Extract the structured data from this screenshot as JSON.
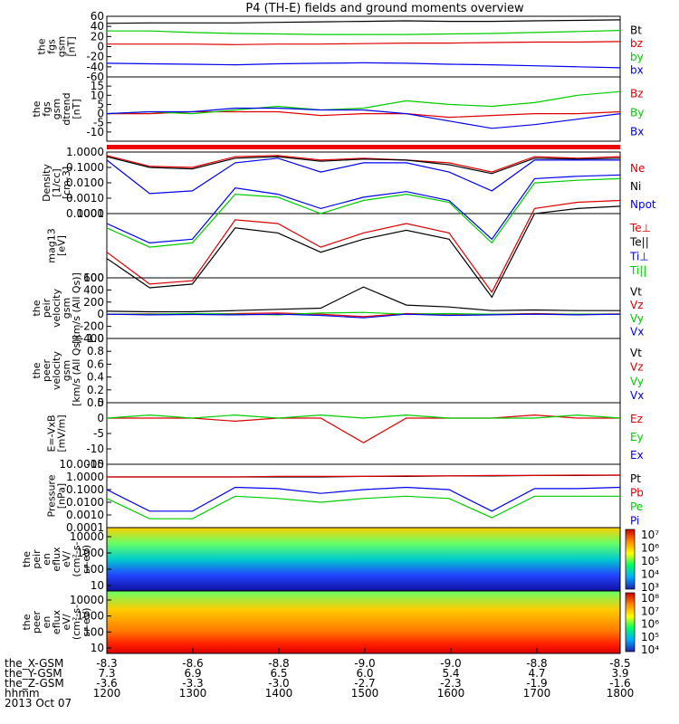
{
  "title": "P4 (TH-E) fields and ground moments overview",
  "chart_data": [
    {
      "type": "line",
      "ylabel": [
        "the",
        "fgs",
        "gsm",
        "[nT]"
      ],
      "ylim": [
        -60,
        60
      ],
      "yticks": [
        "60",
        "40",
        "20",
        "0",
        "-20",
        "-40",
        "-60"
      ],
      "yticks_val": [
        60,
        40,
        20,
        0,
        -20,
        -40,
        -60
      ],
      "series": [
        {
          "name": "Bt",
          "color": "#000000",
          "values": [
            46,
            47,
            47,
            47,
            48,
            49,
            50,
            51,
            50,
            50,
            51,
            52,
            53
          ]
        },
        {
          "name": "bz",
          "color": "#dd0000",
          "values": [
            5,
            5,
            5,
            4,
            5,
            5,
            6,
            7,
            7,
            8,
            9,
            9,
            10
          ]
        },
        {
          "name": "by",
          "color": "#00cc00",
          "values": [
            31,
            31,
            28,
            26,
            25,
            24,
            24,
            24,
            25,
            26,
            28,
            30,
            32
          ]
        },
        {
          "name": "bx",
          "color": "#0000ee",
          "values": [
            -33,
            -34,
            -35,
            -36,
            -34,
            -33,
            -32,
            -33,
            -35,
            -36,
            -38,
            -40,
            -42
          ]
        }
      ]
    },
    {
      "type": "line",
      "ylabel": [
        "the",
        "fgs",
        "gsm",
        "dtrend",
        "[nT]"
      ],
      "ylim": [
        -15,
        20
      ],
      "yticks": [
        "15",
        "10",
        "5",
        "0",
        "-5",
        "-10"
      ],
      "yticks_val": [
        15,
        10,
        5,
        0,
        -5,
        -10
      ],
      "series": [
        {
          "name": "Bz",
          "color": "#dd0000",
          "values": [
            0,
            0,
            1,
            1,
            1,
            -1,
            0,
            0,
            -2,
            -1,
            0,
            0,
            1
          ]
        },
        {
          "name": "By",
          "color": "#00cc00",
          "values": [
            0,
            1,
            0,
            2,
            4,
            2,
            3,
            7,
            5,
            4,
            6,
            10,
            12
          ]
        },
        {
          "name": "Bx",
          "color": "#0000ee",
          "values": [
            0,
            1,
            1,
            3,
            3,
            2,
            2,
            0,
            -4,
            -8,
            -6,
            -3,
            0
          ]
        }
      ]
    },
    {
      "type": "line",
      "scale": "log",
      "ylabel": [
        "Density",
        "[1/cc]",
        "[cm-3]"
      ],
      "yticks": [
        "1.0000",
        "0.1000",
        "0.0100",
        "0.0010",
        "0.0001"
      ],
      "yticks_val": [
        1,
        0.1,
        0.01,
        0.001,
        0.0001
      ],
      "series": [
        {
          "name": "Ne",
          "color": "#dd0000",
          "values": [
            0.6,
            0.12,
            0.1,
            0.5,
            0.6,
            0.3,
            0.4,
            0.3,
            0.2,
            0.05,
            0.5,
            0.4,
            0.5
          ]
        },
        {
          "name": "Ni",
          "color": "#000000",
          "values": [
            0.5,
            0.1,
            0.08,
            0.4,
            0.5,
            0.25,
            0.35,
            0.3,
            0.15,
            0.04,
            0.4,
            0.35,
            0.4
          ]
        },
        {
          "name": "Npot",
          "color": "#0000ee",
          "values": [
            0.3,
            0.002,
            0.003,
            0.2,
            0.4,
            0.05,
            0.2,
            0.2,
            0.05,
            0.003,
            0.3,
            0.3,
            0.3
          ]
        }
      ]
    },
    {
      "type": "line",
      "scale": "log",
      "ylabel": [
        "mag13",
        "[eV]"
      ],
      "yticks": [
        "1000",
        "100"
      ],
      "yticks_val": [
        1000,
        100
      ],
      "series": [
        {
          "name": "Te⊥",
          "color": "#dd0000",
          "values": [
            250,
            80,
            90,
            800,
            700,
            300,
            500,
            700,
            500,
            60,
            1200,
            1500,
            1600
          ]
        },
        {
          "name": "Te||",
          "color": "#000000",
          "values": [
            200,
            70,
            80,
            600,
            500,
            250,
            400,
            550,
            400,
            50,
            1000,
            1200,
            1300
          ]
        },
        {
          "name": "Ti⊥",
          "color": "#0000ee",
          "values": [
            700,
            350,
            400,
            2500,
            2000,
            1200,
            1800,
            2200,
            1600,
            400,
            3500,
            3800,
            4000
          ]
        },
        {
          "name": "Ti||",
          "color": "#00cc00",
          "values": [
            600,
            300,
            350,
            2000,
            1800,
            1000,
            1600,
            2000,
            1500,
            350,
            3000,
            3300,
            3500
          ]
        }
      ]
    },
    {
      "type": "line",
      "ylabel": [
        "the",
        "peir",
        "velocity",
        "gsm",
        "[km/s (All Qs)]"
      ],
      "ylim": [
        -400,
        600
      ],
      "yticks": [
        "600",
        "400",
        "200",
        "0",
        "-200",
        "-400"
      ],
      "yticks_val": [
        600,
        400,
        200,
        0,
        -200,
        -400
      ],
      "series": [
        {
          "name": "Vt",
          "color": "#000000",
          "values": [
            50,
            40,
            40,
            60,
            80,
            100,
            450,
            150,
            120,
            60,
            70,
            60,
            60
          ]
        },
        {
          "name": "Vz",
          "color": "#dd0000",
          "values": [
            0,
            5,
            0,
            10,
            20,
            0,
            -40,
            10,
            0,
            0,
            10,
            0,
            5
          ]
        },
        {
          "name": "Vy",
          "color": "#00cc00",
          "values": [
            0,
            0,
            10,
            0,
            -10,
            20,
            30,
            0,
            10,
            0,
            0,
            0,
            0
          ]
        },
        {
          "name": "Vx",
          "color": "#0000ee",
          "values": [
            0,
            -10,
            -5,
            -10,
            0,
            -20,
            -60,
            0,
            -20,
            -10,
            0,
            -10,
            0
          ]
        }
      ]
    },
    {
      "type": "line",
      "ylabel": [
        "the",
        "peer",
        "velocity",
        "gsm",
        "[km/s (All Qs)]"
      ],
      "ylim": [
        0,
        1
      ],
      "yticks": [
        "1.0",
        "0.8",
        "0.6",
        "0.4",
        "0.2",
        "0.0"
      ],
      "yticks_val": [
        1,
        0.8,
        0.6,
        0.4,
        0.2,
        0
      ],
      "series": [
        {
          "name": "Vt",
          "color": "#000000",
          "values": []
        },
        {
          "name": "Vz",
          "color": "#dd0000",
          "values": []
        },
        {
          "name": "Vy",
          "color": "#00cc00",
          "values": []
        },
        {
          "name": "Vx",
          "color": "#0000ee",
          "values": []
        }
      ]
    },
    {
      "type": "line",
      "ylabel": [
        "E=-VxB",
        "[mV/m]"
      ],
      "ylim": [
        -15,
        5
      ],
      "yticks": [
        "5",
        "0",
        "-5",
        "-10",
        "-15"
      ],
      "yticks_val": [
        5,
        0,
        -5,
        -10,
        -15
      ],
      "series": [
        {
          "name": "Ez",
          "color": "#dd0000",
          "values": [
            0,
            0,
            0,
            -1,
            0,
            0,
            -8,
            0,
            0,
            0,
            1,
            0,
            0
          ]
        },
        {
          "name": "Ey",
          "color": "#00cc00",
          "values": [
            0,
            1,
            0,
            1,
            0,
            1,
            0,
            1,
            0,
            0,
            0,
            1,
            0
          ]
        },
        {
          "name": "Ex",
          "color": "#0000ee",
          "values": []
        }
      ]
    },
    {
      "type": "line",
      "scale": "log",
      "ylabel": [
        "Pressure",
        "[nPa]"
      ],
      "yticks": [
        "10.0000",
        "1.0000",
        "0.1000",
        "0.0100",
        "0.0010",
        "0.0001"
      ],
      "yticks_val": [
        10,
        1,
        0.1,
        0.01,
        0.001,
        0.0001
      ],
      "series": [
        {
          "name": "Pt",
          "color": "#000000",
          "values": [
            1,
            1,
            1,
            1,
            1,
            1,
            1.1,
            1.1,
            1.2,
            1.2,
            1.3,
            1.3,
            1.4
          ]
        },
        {
          "name": "Pb",
          "color": "#dd0000",
          "values": [
            1,
            1,
            1,
            1,
            1.1,
            1.1,
            1.1,
            1.2,
            1.2,
            1.3,
            1.3,
            1.4,
            1.4
          ]
        },
        {
          "name": "Pe",
          "color": "#00cc00",
          "values": [
            0.02,
            0.0005,
            0.0005,
            0.03,
            0.02,
            0.01,
            0.02,
            0.03,
            0.02,
            0.0006,
            0.03,
            0.03,
            0.03
          ]
        },
        {
          "name": "Pi",
          "color": "#0000ee",
          "values": [
            0.1,
            0.002,
            0.002,
            0.15,
            0.12,
            0.05,
            0.1,
            0.15,
            0.1,
            0.002,
            0.12,
            0.12,
            0.15
          ]
        }
      ]
    },
    {
      "type": "heatmap",
      "ylabel": [
        "the",
        "peir",
        "en",
        "eflux",
        "eV/",
        "(cm²-s-",
        "sr-eV)"
      ],
      "yticks": [
        "10000",
        "1000",
        "100",
        "10"
      ],
      "colorbar": [
        "10⁷",
        "10⁶",
        "10⁵",
        "10⁴",
        "10³"
      ]
    },
    {
      "type": "heatmap",
      "ylabel": [
        "the",
        "peer",
        "en",
        "eflux",
        "eV/",
        "(cm²-s-",
        "sr-eV)"
      ],
      "yticks": [
        "10000",
        "1000",
        "100",
        "10"
      ],
      "colorbar": [
        "10⁸",
        "10⁷",
        "10⁶",
        "10⁵",
        "10⁴"
      ]
    }
  ],
  "x_axis": {
    "rows": [
      {
        "label": "the_X-GSM",
        "values": [
          "-8.3",
          "-8.6",
          "-8.8",
          "-9.0",
          "-9.0",
          "-8.8",
          "-8.5"
        ]
      },
      {
        "label": "the_Y-GSM",
        "values": [
          "7.3",
          "6.9",
          "6.5",
          "6.0",
          "5.4",
          "4.7",
          "3.9"
        ]
      },
      {
        "label": "the_Z-GSM",
        "values": [
          "-3.6",
          "-3.3",
          "-3.0",
          "-2.7",
          "-2.3",
          "-1.9",
          "-1.6"
        ]
      },
      {
        "label": "hhmm",
        "values": [
          "1200",
          "1300",
          "1400",
          "1500",
          "1600",
          "1700",
          "1800"
        ]
      }
    ],
    "date": "2013 Oct 07"
  }
}
